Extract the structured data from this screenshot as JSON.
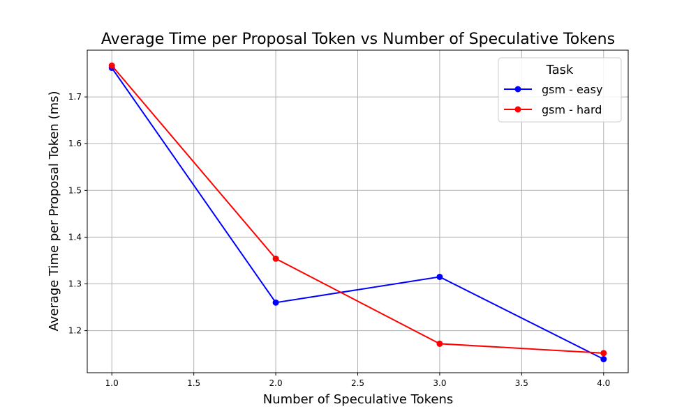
{
  "chart_data": {
    "type": "line",
    "title": "Average Time per Proposal Token vs Number of Speculative Tokens",
    "xlabel": "Number of Speculative Tokens",
    "ylabel": "Average Time per Proposal Token (ms)",
    "xlim": [
      0.85,
      4.15
    ],
    "ylim": [
      1.11,
      1.8
    ],
    "xticks": [
      1.0,
      1.5,
      2.0,
      2.5,
      3.0,
      3.5,
      4.0
    ],
    "xtick_labels": [
      "1.0",
      "1.5",
      "2.0",
      "2.5",
      "3.0",
      "3.5",
      "4.0"
    ],
    "yticks": [
      1.2,
      1.3,
      1.4,
      1.5,
      1.6,
      1.7
    ],
    "ytick_labels": [
      "1.2",
      "1.3",
      "1.4",
      "1.5",
      "1.6",
      "1.7"
    ],
    "grid": true,
    "legend": {
      "title": "Task",
      "placement": "top-right"
    },
    "series": [
      {
        "name": "gsm - easy",
        "color": "#0000ff",
        "x": [
          1,
          2,
          3,
          4
        ],
        "y": [
          1.762,
          1.26,
          1.315,
          1.139
        ]
      },
      {
        "name": "gsm - hard",
        "color": "#ff0000",
        "x": [
          1,
          2,
          3,
          4
        ],
        "y": [
          1.767,
          1.354,
          1.172,
          1.152
        ]
      }
    ]
  }
}
